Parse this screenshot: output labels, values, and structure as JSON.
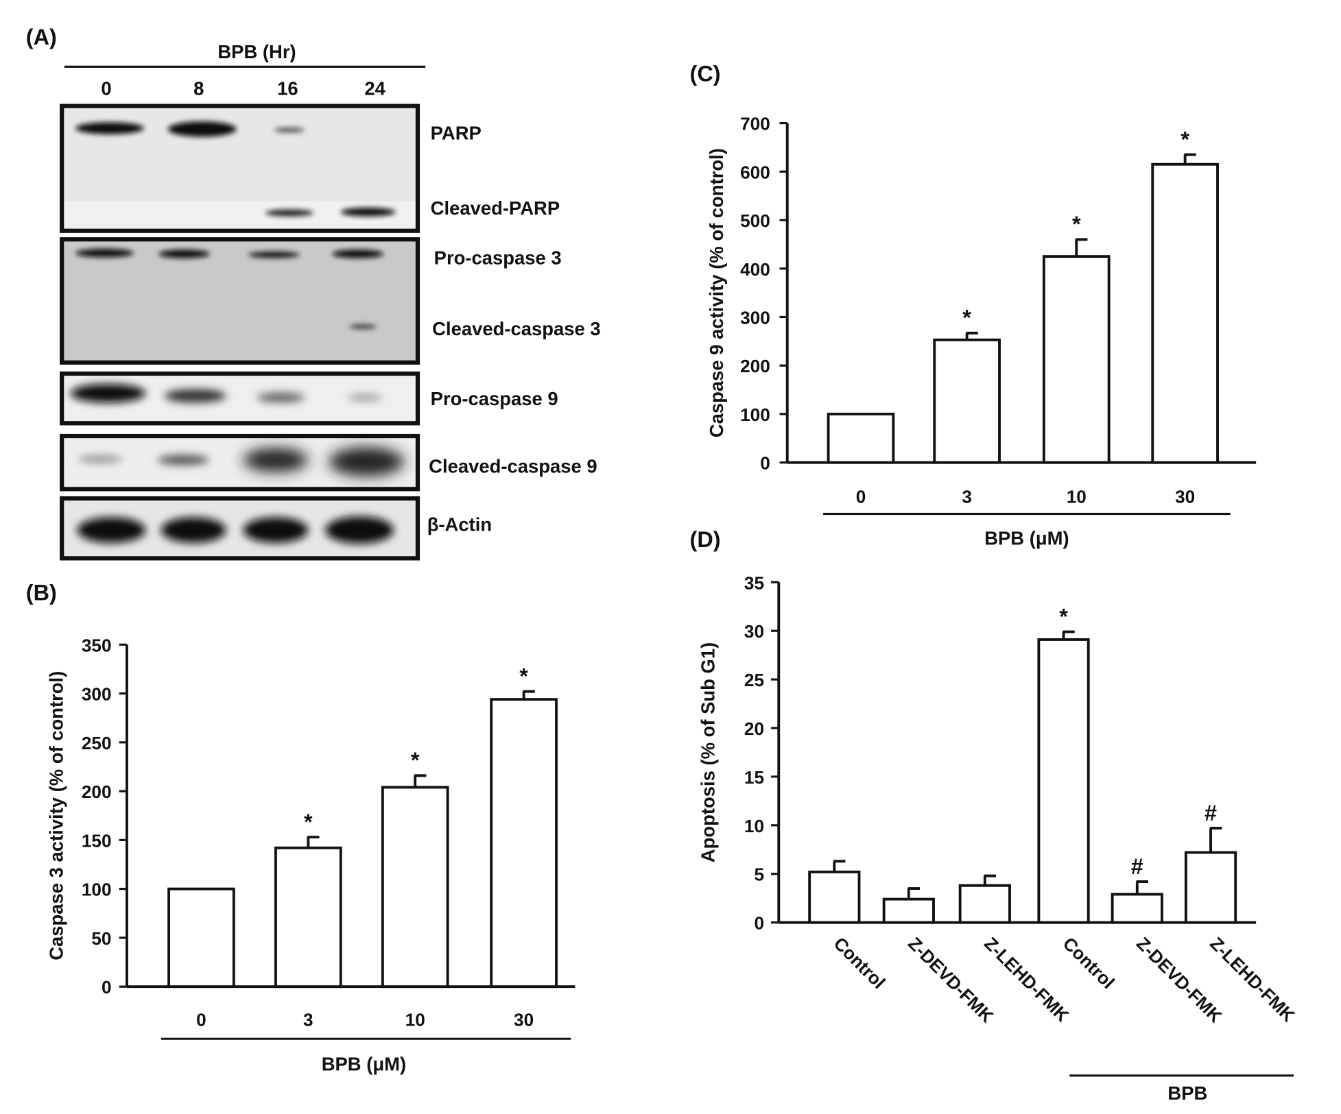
{
  "panel_labels": {
    "a": "(A)",
    "b": "(B)",
    "c": "(C)",
    "d": "(D)"
  },
  "blot": {
    "header": "BPB (Hr)",
    "timepoints": [
      "0",
      "8",
      "16",
      "24"
    ],
    "labels": {
      "parp": "PARP",
      "cleaved_parp": "Cleaved-PARP",
      "pro_casp3": "Pro-caspase 3",
      "cleaved_casp3": "Cleaved-caspase 3",
      "pro_casp9": "Pro-caspase 9",
      "cleaved_casp9": "Cleaved-caspase 9",
      "actin": "β-Actin"
    }
  },
  "chart_data": [
    {
      "panel": "B",
      "type": "bar",
      "title": "",
      "categories": [
        "0",
        "3",
        "10",
        "30"
      ],
      "values": [
        100,
        142,
        204,
        294
      ],
      "errors": [
        0,
        11,
        12,
        8
      ],
      "annotations": [
        "",
        "*",
        "*",
        "*"
      ],
      "xlabel": "BPB (μM)",
      "ylabel": "Caspase 3 activity (% of control)",
      "ylim": [
        0,
        350
      ],
      "yticks": [
        "0",
        "50",
        "100",
        "150",
        "200",
        "250",
        "300",
        "350"
      ]
    },
    {
      "panel": "C",
      "type": "bar",
      "title": "",
      "categories": [
        "0",
        "3",
        "10",
        "30"
      ],
      "values": [
        100,
        253,
        425,
        615
      ],
      "errors": [
        0,
        14,
        35,
        20
      ],
      "annotations": [
        "",
        "*",
        "*",
        "*"
      ],
      "xlabel": "BPB (μM)",
      "ylabel": "Caspase 9 activity (% of control)",
      "ylim": [
        0,
        700
      ],
      "yticks": [
        "0",
        "100",
        "200",
        "300",
        "400",
        "500",
        "600",
        "700"
      ]
    },
    {
      "panel": "D",
      "type": "bar",
      "title": "",
      "categories": [
        "Control",
        "Z-DEVD-FMK",
        "Z-LEHD-FMK",
        "Control",
        "Z-DEVD-FMK",
        "Z-LEHD-FMK"
      ],
      "values": [
        5.2,
        2.4,
        3.8,
        29.1,
        2.9,
        7.2
      ],
      "errors": [
        1.1,
        1.1,
        1.0,
        0.8,
        1.3,
        2.5
      ],
      "annotations": [
        "",
        "",
        "",
        "*",
        "#",
        "#"
      ],
      "group_label": "BPB",
      "xlabel": "",
      "ylabel": "Apoptosis (% of Sub G1)",
      "ylim": [
        0,
        35
      ],
      "yticks": [
        "0",
        "5",
        "10",
        "15",
        "20",
        "25",
        "30",
        "35"
      ]
    }
  ]
}
